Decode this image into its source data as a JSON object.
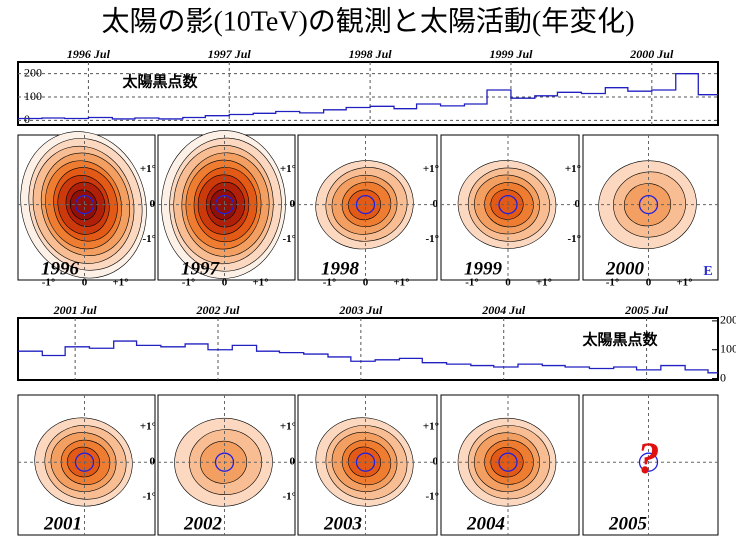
{
  "title": "太陽の影(10TeV)の観測と太陽活動(年変化)",
  "chart_data": [
    {
      "type": "line",
      "drawstyle": "steps-post",
      "annotation": "太陽黒点数",
      "color": "#2020c0",
      "grid": true,
      "ytick_side": "left",
      "xlim": [
        1996.0,
        2000.97
      ],
      "ylim": [
        -20,
        250
      ],
      "yticks": [
        0,
        100,
        200
      ],
      "xticks": [
        {
          "value": 1996.5,
          "label": "1996 Jul"
        },
        {
          "value": 1997.5,
          "label": "1997 Jul"
        },
        {
          "value": 1998.5,
          "label": "1998 Jul"
        },
        {
          "value": 1999.5,
          "label": "1999 Jul"
        },
        {
          "value": 2000.5,
          "label": "2000 Jul"
        }
      ],
      "x": [
        1996.0,
        1996.17,
        1996.33,
        1996.5,
        1996.67,
        1996.83,
        1997.0,
        1997.17,
        1997.33,
        1997.5,
        1997.67,
        1997.83,
        1998.0,
        1998.17,
        1998.33,
        1998.5,
        1998.67,
        1998.83,
        1999.0,
        1999.17,
        1999.33,
        1999.5,
        1999.67,
        1999.83,
        2000.0,
        2000.17,
        2000.33,
        2000.5,
        2000.67,
        2000.83
      ],
      "values": [
        8,
        10,
        8,
        12,
        6,
        10,
        6,
        12,
        20,
        25,
        30,
        38,
        32,
        45,
        55,
        60,
        50,
        70,
        62,
        70,
        130,
        95,
        105,
        120,
        115,
        140,
        125,
        130,
        200,
        110
      ]
    },
    {
      "type": "line",
      "drawstyle": "steps-post",
      "annotation": "太陽黒点数",
      "color": "#2020c0",
      "grid": false,
      "ytick_side": "right",
      "xlim": [
        2001.1,
        2006.0
      ],
      "ylim": [
        -5,
        210
      ],
      "yticks": [
        0,
        100,
        200
      ],
      "xticks": [
        {
          "value": 2001.5,
          "label": "2001 Jul"
        },
        {
          "value": 2002.5,
          "label": "2002 Jul"
        },
        {
          "value": 2003.5,
          "label": "2003 Jul"
        },
        {
          "value": 2004.5,
          "label": "2004 Jul"
        },
        {
          "value": 2005.5,
          "label": "2005 Jul"
        }
      ],
      "x": [
        2001.1,
        2001.27,
        2001.43,
        2001.6,
        2001.77,
        2001.93,
        2002.1,
        2002.27,
        2002.43,
        2002.6,
        2002.77,
        2002.93,
        2003.1,
        2003.27,
        2003.43,
        2003.6,
        2003.77,
        2003.93,
        2004.1,
        2004.27,
        2004.43,
        2004.6,
        2004.77,
        2004.93,
        2005.1,
        2005.27,
        2005.43,
        2005.6,
        2005.77,
        2005.93
      ],
      "values": [
        95,
        80,
        110,
        105,
        130,
        115,
        110,
        120,
        100,
        115,
        95,
        90,
        85,
        75,
        60,
        65,
        70,
        55,
        50,
        45,
        40,
        50,
        45,
        40,
        35,
        40,
        30,
        45,
        30,
        20
      ]
    }
  ],
  "panels": {
    "axis": {
      "minus": "-1°",
      "zero": "0",
      "plus": "+1°"
    },
    "years": [
      "1996",
      "1997",
      "1998",
      "1999",
      "2000",
      "2001",
      "2002",
      "2003",
      "2004",
      "2005"
    ],
    "east": "E",
    "unknown": "?"
  }
}
